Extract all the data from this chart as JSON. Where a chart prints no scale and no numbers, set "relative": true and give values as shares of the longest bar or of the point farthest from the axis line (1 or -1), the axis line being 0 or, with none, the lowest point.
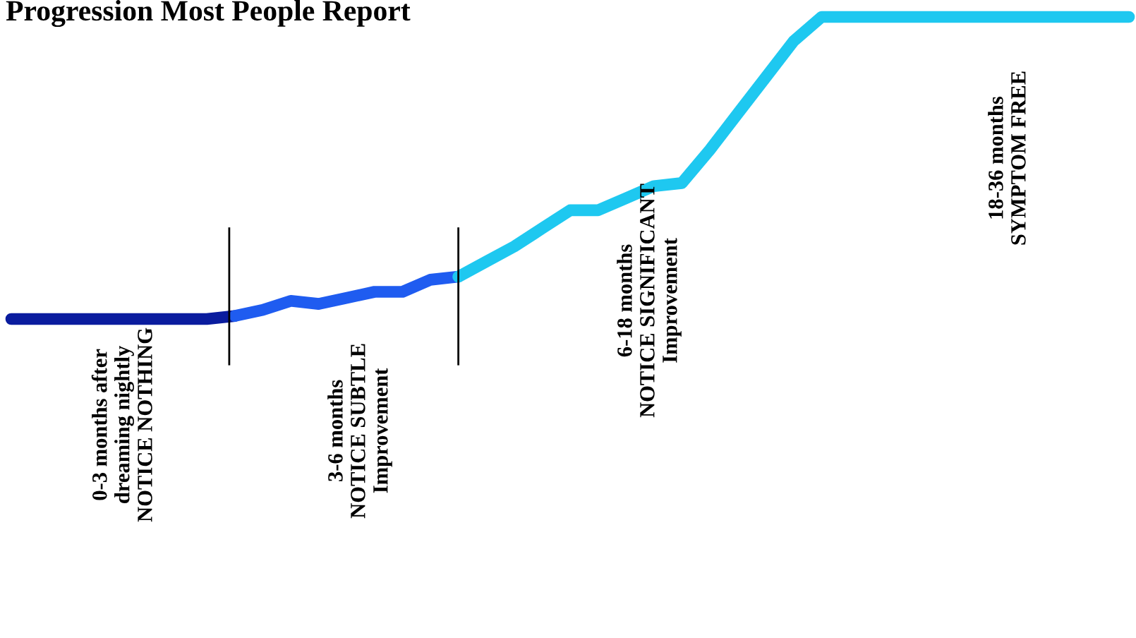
{
  "chart_data": {
    "type": "line",
    "relative": true,
    "title": "Progression Most People Report",
    "categories": [
      null,
      null,
      null,
      null,
      null,
      null,
      null,
      null,
      null,
      null,
      null,
      null,
      null,
      null,
      null,
      null,
      null,
      null,
      null,
      null,
      null,
      null,
      null,
      null,
      null,
      null,
      null,
      null,
      null,
      null,
      null,
      null,
      null,
      null,
      null,
      null,
      null,
      null,
      null,
      null,
      null
    ],
    "series": [
      {
        "color": "#0a1c9e",
        "values": [
          0,
          0,
          0,
          0,
          0,
          0,
          0,
          0,
          0.01,
          null,
          null,
          null,
          null,
          null,
          null,
          null,
          null,
          null,
          null,
          null,
          null,
          null,
          null,
          null,
          null,
          null,
          null,
          null,
          null,
          null,
          null,
          null,
          null,
          null,
          null,
          null,
          null,
          null,
          null,
          null,
          null
        ]
      },
      {
        "color": "#1f5cf0",
        "values": [
          null,
          null,
          null,
          null,
          null,
          null,
          null,
          null,
          0.01,
          0.03,
          0.06,
          0.05,
          0.07,
          0.09,
          0.09,
          0.13,
          0.14,
          null,
          null,
          null,
          null,
          null,
          null,
          null,
          null,
          null,
          null,
          null,
          null,
          null,
          null,
          null,
          null,
          null,
          null,
          null,
          null,
          null,
          null,
          null,
          null
        ]
      },
      {
        "color": "#1ec8f0",
        "values": [
          null,
          null,
          null,
          null,
          null,
          null,
          null,
          null,
          null,
          null,
          null,
          null,
          null,
          null,
          null,
          null,
          0.14,
          0.19,
          0.24,
          0.3,
          0.36,
          0.36,
          0.4,
          0.44,
          0.45,
          0.56,
          0.68,
          0.8,
          0.92,
          1,
          1,
          1,
          1,
          1,
          1,
          1,
          1,
          1,
          1,
          1,
          1
        ]
      }
    ],
    "annotations": [
      "0-3 months after\ndreaming nightly\nNOTICE NOTHING",
      "3-6 months\nNOTICE SUBTLE\nImprovement",
      "6-18 months\nNOTICE SIGNIFICANT\nImprovement",
      "18-36 months\nSYMPTOM FREE"
    ]
  }
}
